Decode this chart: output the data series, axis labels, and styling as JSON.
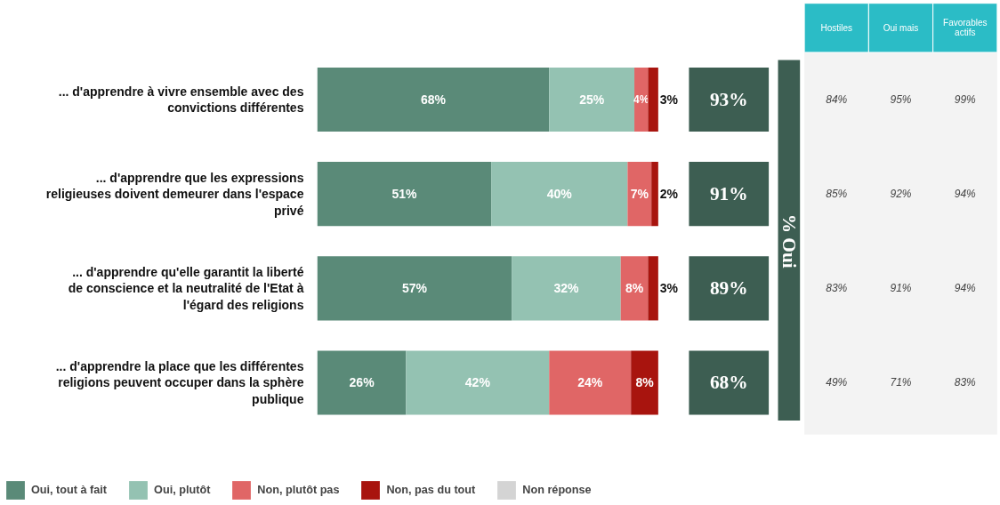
{
  "chart_data": [
    {
      "type": "bar",
      "orientation": "horizontal",
      "stacked": true,
      "xlim": [
        0,
        100
      ],
      "legend": "bottom",
      "grid": false,
      "categories": [
        "... d'apprendre à vivre ensemble avec des convictions différentes",
        "... d'apprendre que les expressions religieuses doivent demeurer dans l'espace privé",
        "... d'apprendre qu'elle garantit la liberté de conscience et la neutralité de l'Etat à l'égard des religions",
        "... d'apprendre la place que les différentes religions peuvent occuper dans la sphère publique"
      ],
      "series": [
        {
          "name": "Oui, tout à fait",
          "color": "#5a8a78",
          "values": [
            68,
            51,
            57,
            26
          ],
          "value_labels": [
            "68%",
            "51%",
            "57%",
            "26%"
          ]
        },
        {
          "name": "Oui, plutôt",
          "color": "#94c2b2",
          "values": [
            25,
            40,
            32,
            42
          ],
          "value_labels": [
            "25%",
            "40%",
            "32%",
            "42%"
          ]
        },
        {
          "name": "Non, plutôt pas",
          "color": "#e06666",
          "values": [
            4,
            7,
            8,
            24
          ],
          "value_labels": [
            "4%",
            "7%",
            "8%",
            "24%"
          ]
        },
        {
          "name": "Non, pas du tout",
          "color": "#a8140e",
          "values": [
            3,
            2,
            3,
            8
          ],
          "value_labels": [
            "3%",
            "2%",
            "3%",
            "8%"
          ]
        },
        {
          "name": "Non réponse",
          "color": "#d4d4d4",
          "values": [
            null,
            null,
            null,
            null
          ]
        }
      ]
    },
    {
      "type": "other",
      "xlabel": "% Oui",
      "color": "#3d5e52",
      "annotations": [
        "93%",
        "91%",
        "89%",
        "68%"
      ]
    },
    {
      "type": "other",
      "categories": [
        "Hostiles",
        "Oui mais",
        "Favorables actifs"
      ],
      "annotations": [
        "84%",
        "95%",
        "99%",
        "85%",
        "92%",
        "94%",
        "83%",
        "91%",
        "94%",
        "49%",
        "71%",
        "83%"
      ]
    }
  ]
}
